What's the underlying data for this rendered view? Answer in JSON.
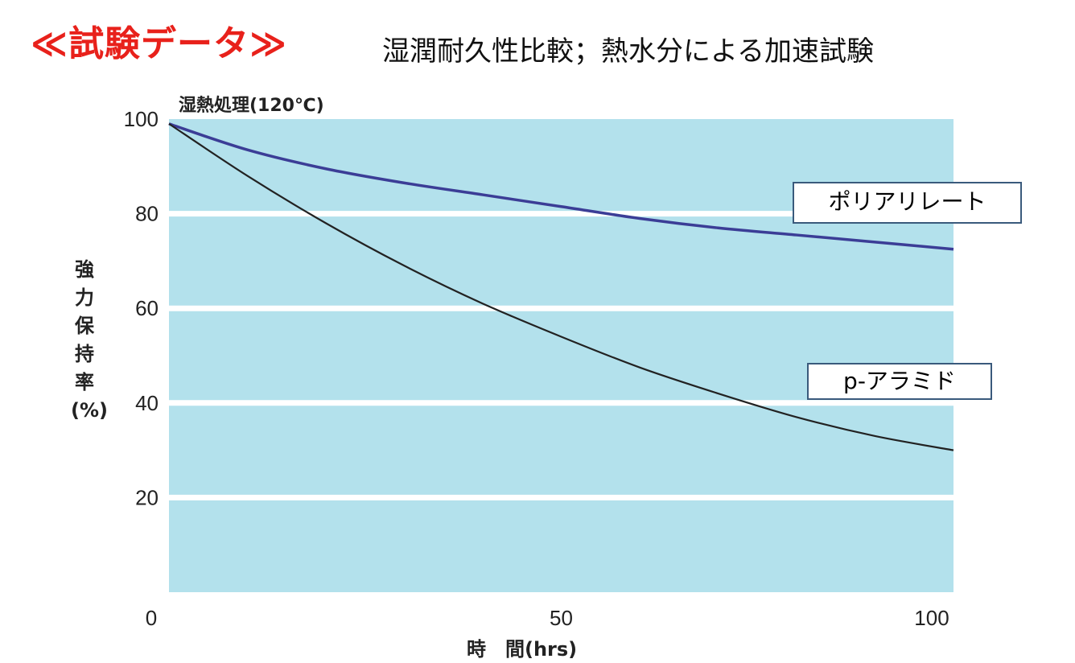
{
  "header": {
    "title": "≪試験データ≫",
    "subtitle": "湿潤耐久性比較；熱水分による加速試験"
  },
  "colors": {
    "title": "#e8211b",
    "plot_bg": "#b3e1ec",
    "grid": "#ffffff",
    "series_polyarylate": "#3b3d96",
    "series_aramid": "#222222"
  },
  "chart_data": {
    "type": "line",
    "title": "湿熱処理(120℃)",
    "xlabel": "時　間(hrs)",
    "ylabel": "強力保持率(%)",
    "xlim": [
      0,
      100
    ],
    "ylim": [
      0,
      100
    ],
    "x_ticks": [
      "0",
      "50",
      "100"
    ],
    "y_ticks": [
      "20",
      "40",
      "60",
      "80",
      "100"
    ],
    "grid": true,
    "series": [
      {
        "name": "ポリアリレート",
        "x": [
          0,
          10,
          20,
          30,
          40,
          50,
          60,
          70,
          80,
          90,
          100
        ],
        "values": [
          99,
          93.5,
          89.5,
          86.5,
          84,
          81.5,
          79,
          77,
          75.5,
          74,
          72.5
        ]
      },
      {
        "name": "p-アラミド",
        "x": [
          0,
          10,
          20,
          30,
          40,
          50,
          60,
          70,
          80,
          90,
          100
        ],
        "values": [
          99,
          88,
          78,
          69,
          61,
          54,
          47.5,
          42,
          37,
          33,
          30
        ]
      }
    ]
  }
}
